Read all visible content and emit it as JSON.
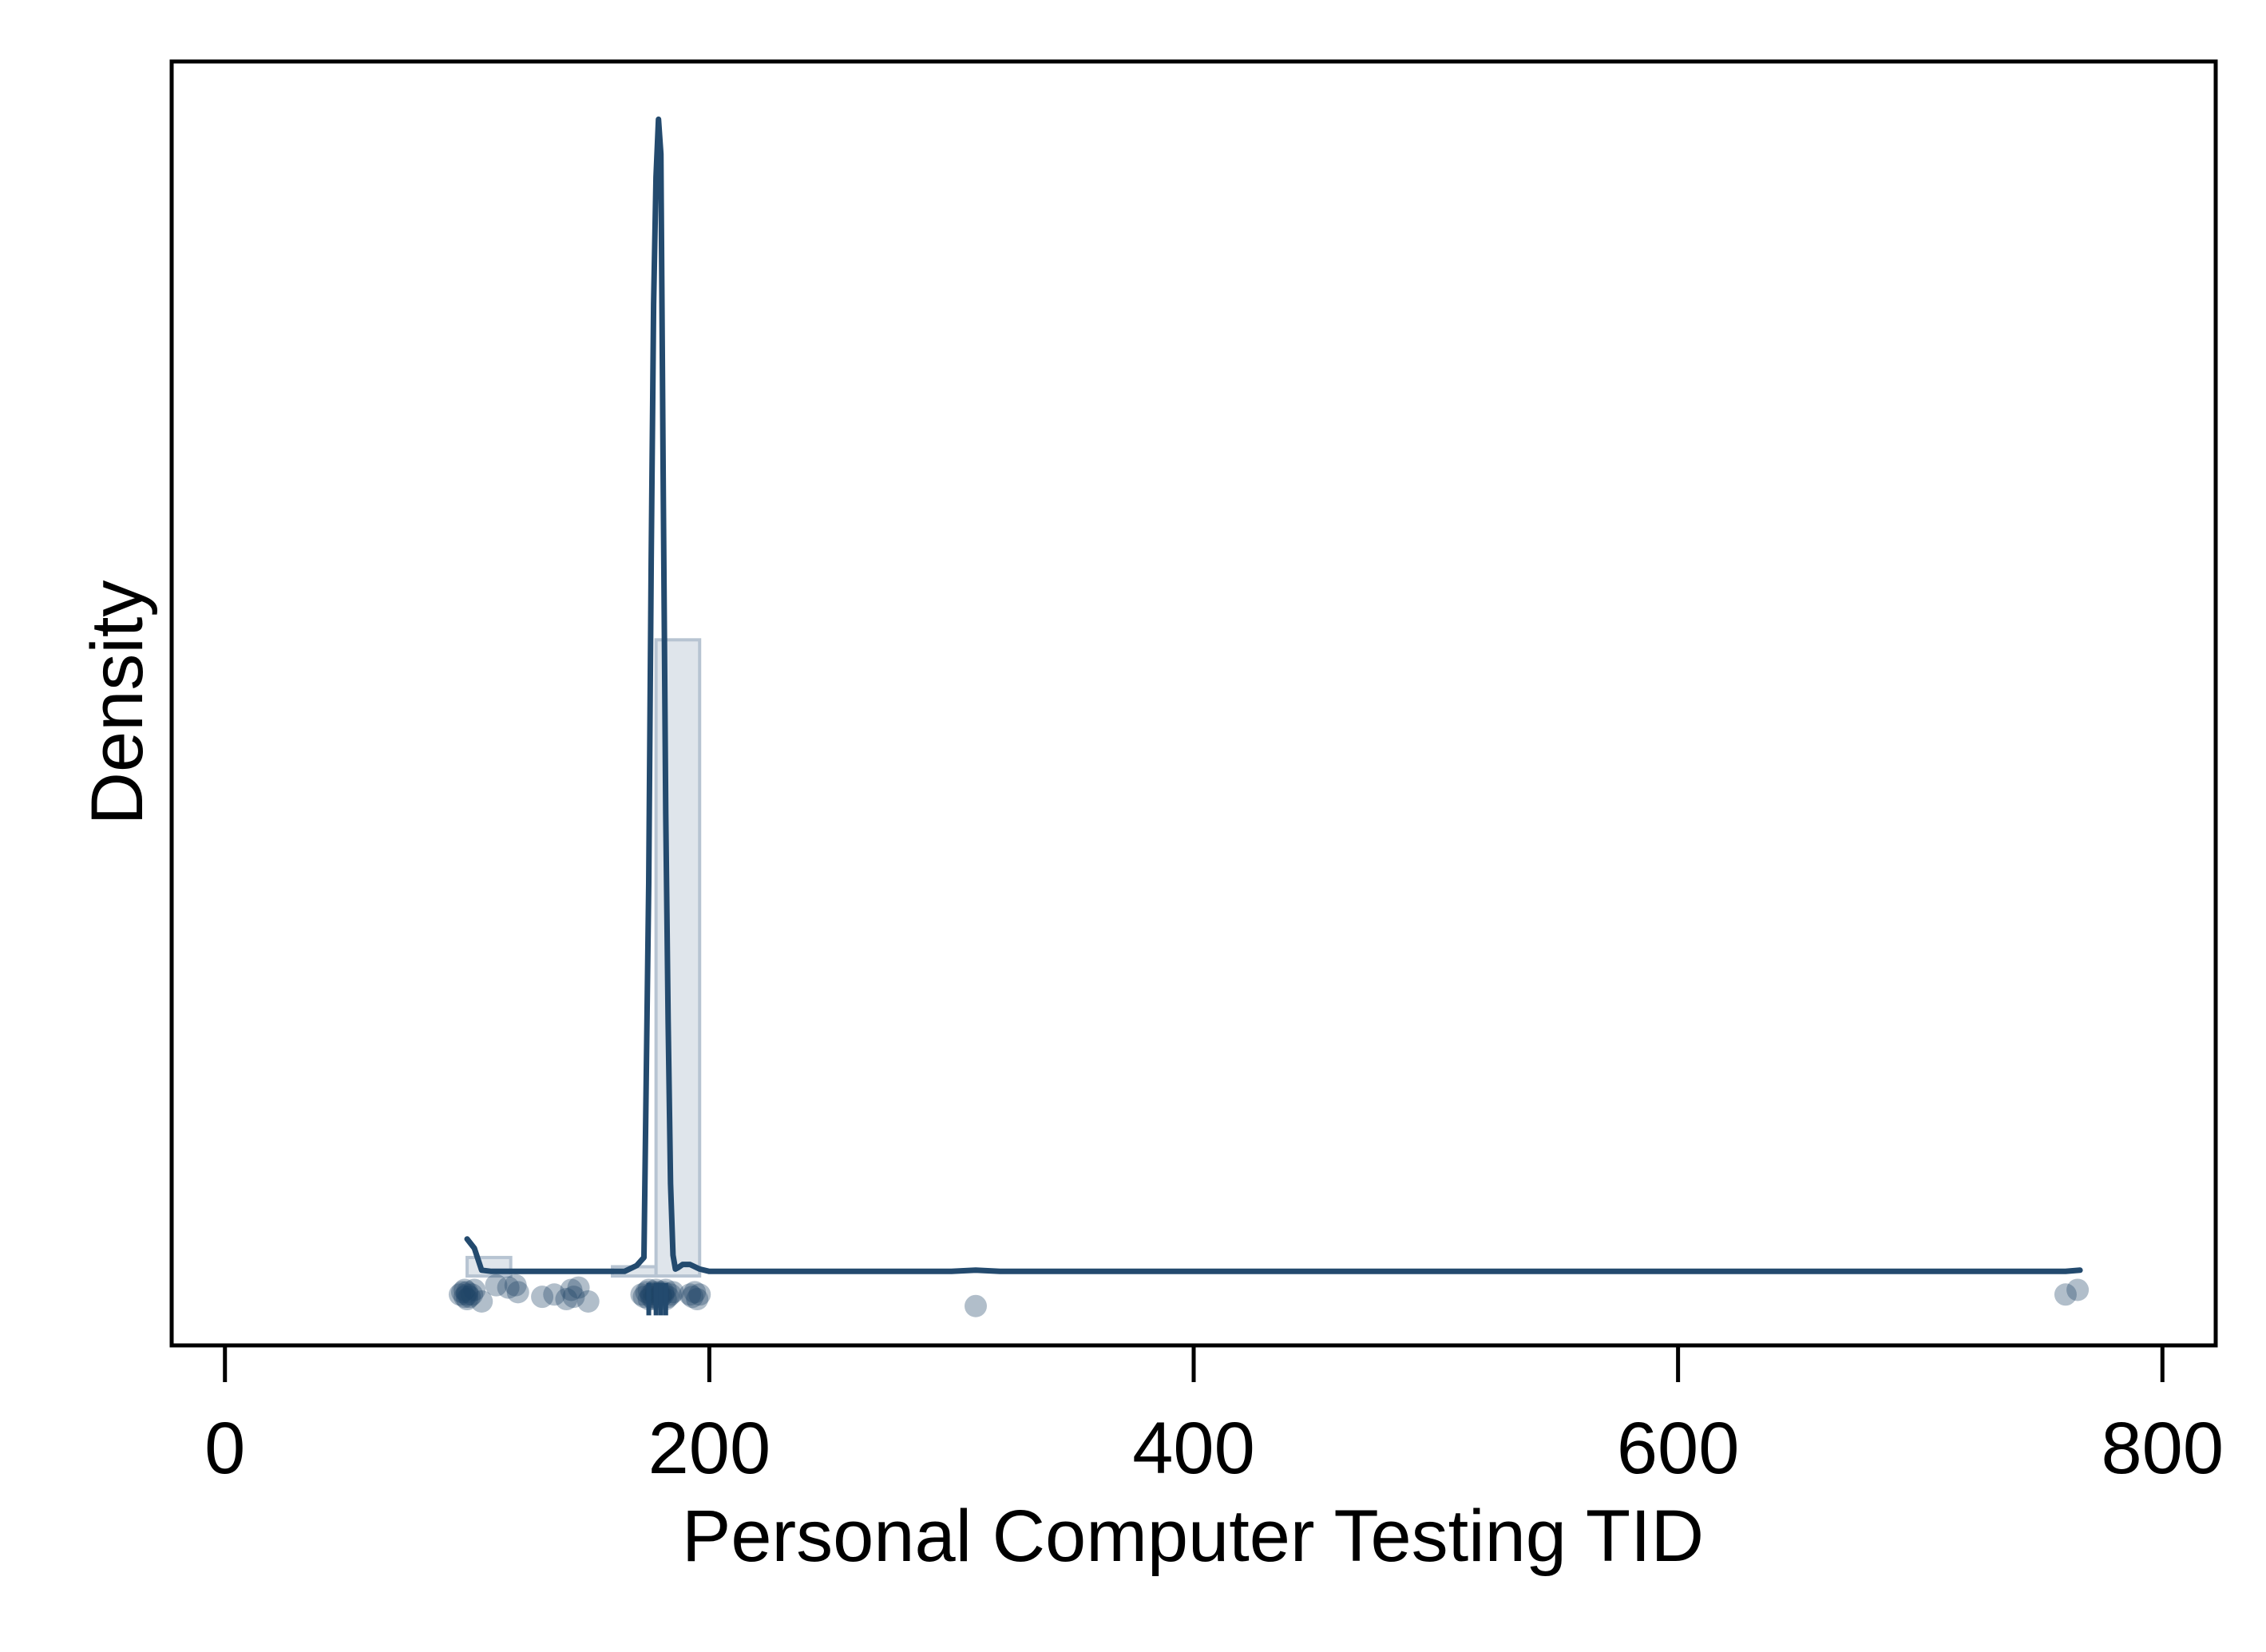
{
  "chart_data": {
    "type": "histogram+density",
    "title": "",
    "xlabel": "Personal Computer Testing TID",
    "ylabel": "Density",
    "xlim": [
      -22,
      822
    ],
    "ylim": [
      -0.003,
      0.0525
    ],
    "x_ticks": [
      0,
      200,
      400,
      600,
      800
    ],
    "x_tick_labels": [
      "0",
      "200",
      "400",
      "600",
      "800"
    ],
    "y_ticks_shown": false,
    "grid": false,
    "legend": "none",
    "colors": {
      "line": "#234a6e",
      "bars_fill": "#d9e0e8",
      "bars_stroke": "#b7c4d2",
      "points": "#1f4466",
      "axis": "#000000"
    },
    "histogram_bars": [
      {
        "x0": 100,
        "x1": 118,
        "density": 0.0008
      },
      {
        "x0": 160,
        "x1": 178,
        "density": 0.0004
      },
      {
        "x0": 178,
        "x1": 196,
        "density": 0.0275
      }
    ],
    "density_curve": {
      "x": [
        100,
        103,
        106,
        110,
        130,
        150,
        165,
        170,
        173,
        175,
        176,
        177,
        178,
        179,
        180,
        181,
        182,
        183,
        184,
        185,
        186,
        187,
        189,
        192,
        196,
        200,
        300,
        310,
        320,
        760,
        766
      ],
      "y": [
        0.0016,
        0.0012,
        0.00025,
        0.0002,
        0.0002,
        0.0002,
        0.0002,
        0.00045,
        0.0008,
        0.017,
        0.031,
        0.042,
        0.0475,
        0.05,
        0.0485,
        0.034,
        0.02,
        0.011,
        0.004,
        0.0009,
        0.0003,
        0.00035,
        0.0005,
        0.0005,
        0.0003,
        0.0002,
        0.0002,
        0.00025,
        0.0002,
        0.0002,
        0.00025
      ]
    },
    "jitter_points": {
      "x": [
        97,
        98,
        99,
        99,
        100,
        100,
        100,
        101,
        102,
        103,
        106,
        112,
        117,
        120,
        121,
        131,
        136,
        141,
        143,
        144,
        146,
        150,
        172,
        173,
        174,
        175,
        175,
        176,
        176,
        177,
        177,
        178,
        178,
        178,
        179,
        179,
        180,
        180,
        181,
        181,
        182,
        182,
        183,
        184,
        185,
        192,
        193,
        194,
        195,
        196,
        310,
        760,
        765
      ],
      "y": [
        -0.0008,
        -0.0007,
        -0.0009,
        -0.0006,
        -0.0008,
        -0.001,
        -0.0007,
        -0.0009,
        -0.0008,
        -0.0006,
        -0.0011,
        -0.0004,
        -0.0005,
        -0.0004,
        -0.0007,
        -0.0009,
        -0.0008,
        -0.001,
        -0.0006,
        -0.0009,
        -0.0005,
        -0.0011,
        -0.0008,
        -0.0009,
        -0.0007,
        -0.001,
        -0.0006,
        -0.0008,
        -0.0009,
        -0.0007,
        -0.001,
        -0.0008,
        -0.0006,
        -0.0009,
        -0.0007,
        -0.001,
        -0.0008,
        -0.0009,
        -0.0007,
        -0.0008,
        -0.001,
        -0.0006,
        -0.0009,
        -0.0008,
        -0.0007,
        -0.0008,
        -0.0009,
        -0.0007,
        -0.001,
        -0.0008,
        -0.0013,
        -0.0008,
        -0.0006
      ]
    },
    "rug_ticks": [
      175,
      178,
      180,
      182
    ]
  }
}
